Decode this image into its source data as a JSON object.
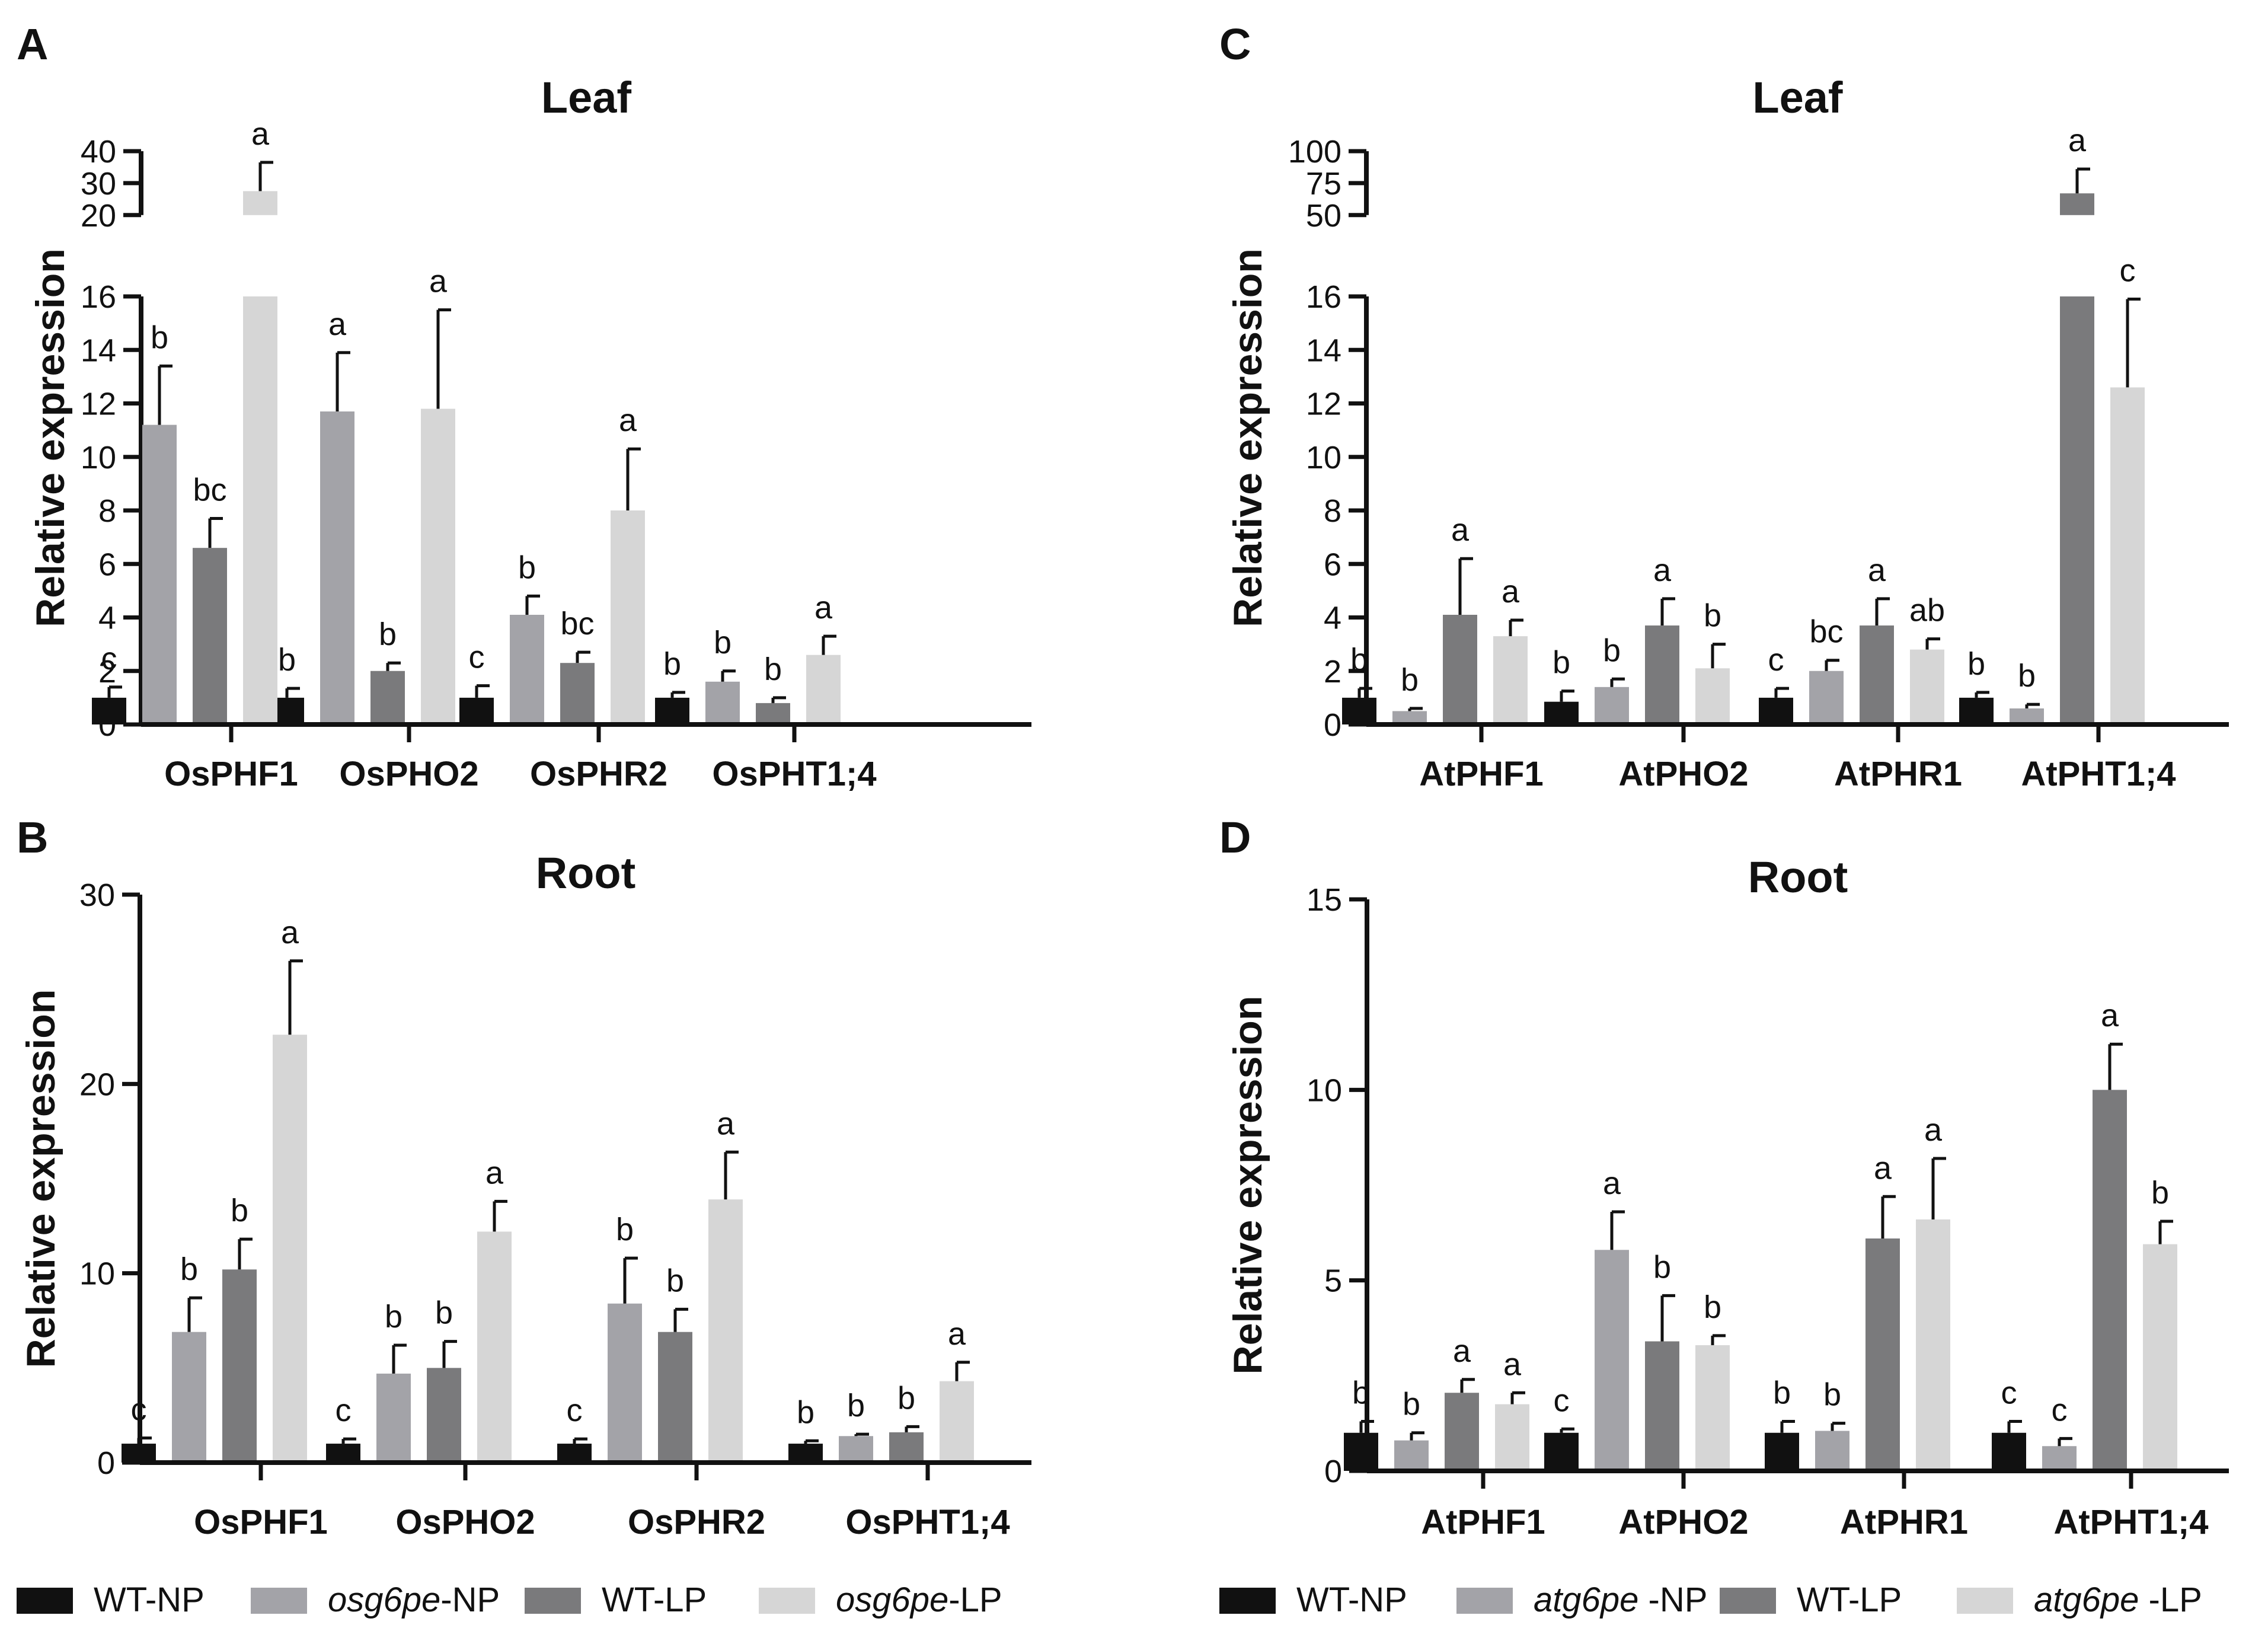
{
  "colors": {
    "s1": "#111111",
    "s2": "#a3a3a8",
    "s3": "#7a7a7c",
    "s4": "#d6d6d6",
    "axis": "#111111"
  },
  "legends": {
    "left": [
      {
        "text": "WT-NP",
        "italic": "",
        "tail": ""
      },
      {
        "text": "",
        "italic": "osg6pe",
        "tail": "-NP"
      },
      {
        "text": "WT-LP",
        "italic": "",
        "tail": ""
      },
      {
        "text": "",
        "italic": "osg6pe",
        "tail": "-LP"
      }
    ],
    "right": [
      {
        "text": "WT-NP",
        "italic": "",
        "tail": ""
      },
      {
        "text": "",
        "italic": "atg6pe",
        "tail": " -NP"
      },
      {
        "text": "WT-LP",
        "italic": "",
        "tail": ""
      },
      {
        "text": "",
        "italic": "atg6pe",
        "tail": " -LP"
      }
    ]
  },
  "chart_data": [
    {
      "panel": "A",
      "type": "bar",
      "title": "Leaf",
      "ylabel": "Relative expression",
      "categories": [
        "OsPHF1",
        "OsPHO2",
        "OsPHR2",
        "OsPHT1;4"
      ],
      "axis_break": {
        "lower_ylim": [
          0,
          16
        ],
        "lower_ticks": [
          0,
          2,
          4,
          6,
          8,
          10,
          12,
          14,
          16
        ],
        "upper_ylim": [
          20,
          40
        ],
        "upper_ticks": [
          20,
          30,
          40
        ]
      },
      "series": [
        {
          "name": "WT-NP",
          "values": [
            1.0,
            1.0,
            1.0,
            1.0
          ],
          "errors": [
            0.4,
            0.35,
            0.45,
            0.2
          ],
          "letters": [
            "c",
            "b",
            "c",
            "b"
          ]
        },
        {
          "name": "osg6pe-NP",
          "values": [
            11.2,
            11.7,
            4.1,
            1.6
          ],
          "errors": [
            2.2,
            2.2,
            0.7,
            0.4
          ],
          "letters": [
            "b",
            "a",
            "b",
            "b"
          ]
        },
        {
          "name": "WT-LP",
          "values": [
            6.6,
            2.0,
            2.3,
            0.8
          ],
          "errors": [
            1.1,
            0.3,
            0.4,
            0.2
          ],
          "letters": [
            "bc",
            "b",
            "bc",
            "b"
          ]
        },
        {
          "name": "osg6pe-LP",
          "values": [
            27.5,
            11.8,
            8.0,
            2.6
          ],
          "errors": [
            9.0,
            3.7,
            2.3,
            0.7
          ],
          "letters": [
            "a",
            "a",
            "a",
            "a"
          ]
        }
      ]
    },
    {
      "panel": "B",
      "type": "bar",
      "title": "Root",
      "ylabel": "Relative expression",
      "categories": [
        "OsPHF1",
        "OsPHO2",
        "OsPHR2",
        "OsPHT1;4"
      ],
      "ylim": [
        0,
        30
      ],
      "yticks": [
        0,
        10,
        20,
        30
      ],
      "series": [
        {
          "name": "WT-NP",
          "values": [
            1.0,
            1.0,
            1.0,
            1.0
          ],
          "errors": [
            0.3,
            0.25,
            0.25,
            0.15
          ],
          "letters": [
            "c",
            "c",
            "c",
            "b"
          ]
        },
        {
          "name": "osg6pe-NP",
          "values": [
            6.9,
            4.7,
            8.4,
            1.4
          ],
          "errors": [
            1.8,
            1.5,
            2.4,
            0.1
          ],
          "letters": [
            "b",
            "b",
            "b",
            "b"
          ]
        },
        {
          "name": "WT-LP",
          "values": [
            10.2,
            5.0,
            6.9,
            1.6
          ],
          "errors": [
            1.6,
            1.4,
            1.2,
            0.3
          ],
          "letters": [
            "b",
            "b",
            "b",
            "b"
          ]
        },
        {
          "name": "osg6pe-LP",
          "values": [
            22.6,
            12.2,
            13.9,
            4.3
          ],
          "errors": [
            3.9,
            1.6,
            2.5,
            1.0
          ],
          "letters": [
            "a",
            "a",
            "a",
            "a"
          ]
        }
      ]
    },
    {
      "panel": "C",
      "type": "bar",
      "title": "Leaf",
      "ylabel": "Relative expression",
      "categories": [
        "AtPHF1",
        "AtPHO2",
        "AtPHR1",
        "AtPHT1;4"
      ],
      "axis_break": {
        "lower_ylim": [
          0,
          16
        ],
        "lower_ticks": [
          0,
          2,
          4,
          6,
          8,
          10,
          12,
          14,
          16
        ],
        "upper_ylim": [
          50,
          100
        ],
        "upper_ticks": [
          50,
          75,
          100
        ]
      },
      "series": [
        {
          "name": "WT-NP",
          "values": [
            1.0,
            0.85,
            1.0,
            1.0
          ],
          "errors": [
            0.35,
            0.4,
            0.35,
            0.2
          ],
          "letters": [
            "b",
            "b",
            "c",
            "b"
          ]
        },
        {
          "name": "atg6pe-NP",
          "values": [
            0.5,
            1.4,
            2.0,
            0.6
          ],
          "errors": [
            0.1,
            0.3,
            0.4,
            0.15
          ],
          "letters": [
            "b",
            "b",
            "bc",
            "b"
          ]
        },
        {
          "name": "WT-LP",
          "values": [
            4.1,
            3.7,
            3.7,
            67.0
          ],
          "errors": [
            2.1,
            1.0,
            1.0,
            19.0
          ],
          "letters": [
            "a",
            "a",
            "a",
            "a"
          ]
        },
        {
          "name": "atg6pe-LP",
          "values": [
            3.3,
            2.1,
            2.8,
            12.6
          ],
          "errors": [
            0.6,
            0.9,
            0.4,
            3.3
          ],
          "letters": [
            "a",
            "b",
            "ab",
            "c"
          ]
        }
      ]
    },
    {
      "panel": "D",
      "type": "bar",
      "title": "Root",
      "ylabel": "Relative expression",
      "categories": [
        "AtPHF1",
        "AtPHO2",
        "AtPHR1",
        "AtPHT1;4"
      ],
      "ylim": [
        0,
        15
      ],
      "yticks": [
        0,
        5,
        10,
        15
      ],
      "series": [
        {
          "name": "WT-NP",
          "values": [
            1.0,
            1.0,
            1.0,
            1.0
          ],
          "errors": [
            0.3,
            0.1,
            0.3,
            0.3
          ],
          "letters": [
            "b",
            "c",
            "b",
            "c"
          ]
        },
        {
          "name": "atg6pe-NP",
          "values": [
            0.8,
            5.8,
            1.05,
            0.65
          ],
          "errors": [
            0.2,
            1.0,
            0.2,
            0.2
          ],
          "letters": [
            "b",
            "a",
            "b",
            "c"
          ]
        },
        {
          "name": "WT-LP",
          "values": [
            2.05,
            3.4,
            6.1,
            10.0
          ],
          "errors": [
            0.35,
            1.2,
            1.1,
            1.2
          ],
          "letters": [
            "a",
            "b",
            "a",
            "a"
          ]
        },
        {
          "name": "atg6pe-LP",
          "values": [
            1.75,
            3.3,
            6.6,
            5.95
          ],
          "errors": [
            0.3,
            0.25,
            1.6,
            0.6
          ],
          "letters": [
            "a",
            "b",
            "a",
            "b"
          ]
        }
      ]
    }
  ]
}
